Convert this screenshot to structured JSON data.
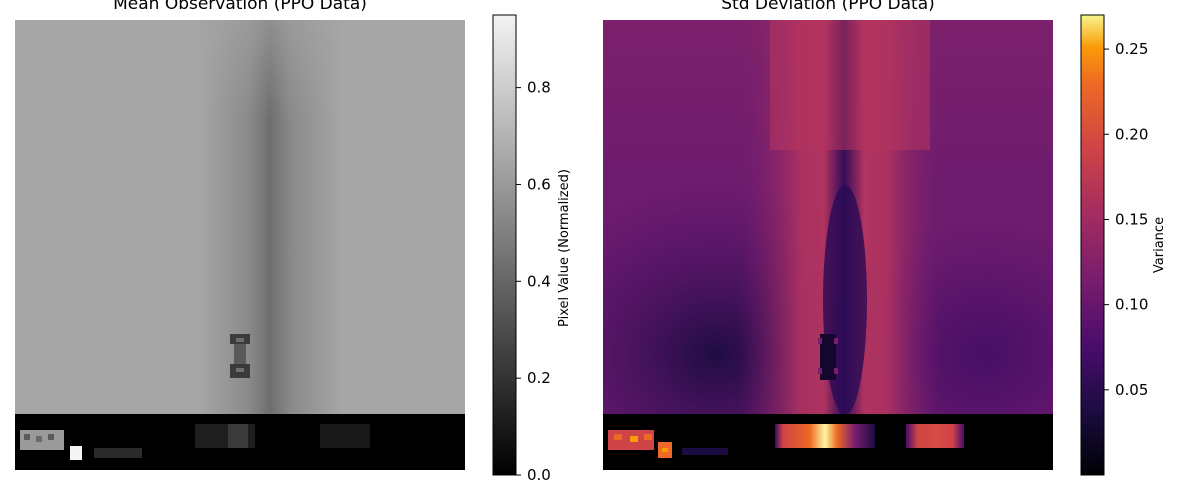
{
  "chart_data": [
    {
      "type": "heatmap",
      "title": "Mean Observation (PPO Data)",
      "colormap": "gray",
      "colorbar": {
        "label": "Pixel Value (Normalized)",
        "range": [
          0.0,
          0.95
        ],
        "ticks": [
          0.0,
          0.2,
          0.4,
          0.6,
          0.8
        ],
        "tick_labels": [
          "0.0",
          "0.2",
          "0.4",
          "0.6",
          "0.8"
        ]
      },
      "description_values": {
        "background": 0.65,
        "road_center": 0.42,
        "car_dark": 0.18,
        "car_light": 0.42,
        "hud_bar": 0.0,
        "hud_text": 0.7,
        "hud_indicator": 1.0
      }
    },
    {
      "type": "heatmap",
      "title": "Std Deviation (PPO Data)",
      "colormap": "inferno",
      "colorbar": {
        "label": "Variance",
        "range": [
          0.0,
          0.27
        ],
        "ticks": [
          0.05,
          0.1,
          0.15,
          0.2,
          0.25
        ],
        "tick_labels": [
          "0.05",
          "0.10",
          "0.15",
          "0.20",
          "0.25"
        ]
      },
      "description_values": {
        "background": 0.09,
        "road_edges": 0.13,
        "road_center": 0.04,
        "lower_left": 0.03,
        "hud_bar": 0.0,
        "hud_peak": 0.26
      }
    }
  ]
}
